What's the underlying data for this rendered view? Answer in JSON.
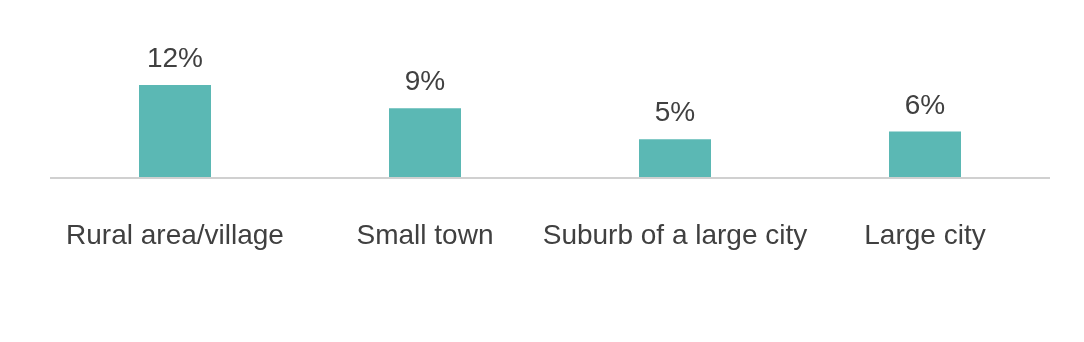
{
  "chart_data": {
    "type": "bar",
    "categories": [
      "Rural area/village",
      "Small town",
      "Suburb of a large city",
      "Large city"
    ],
    "values": [
      12,
      9,
      5,
      6
    ],
    "value_labels": [
      "12%",
      "9%",
      "5%",
      "6%"
    ],
    "color": "#5bb8b4",
    "grid": false,
    "legend": false
  }
}
